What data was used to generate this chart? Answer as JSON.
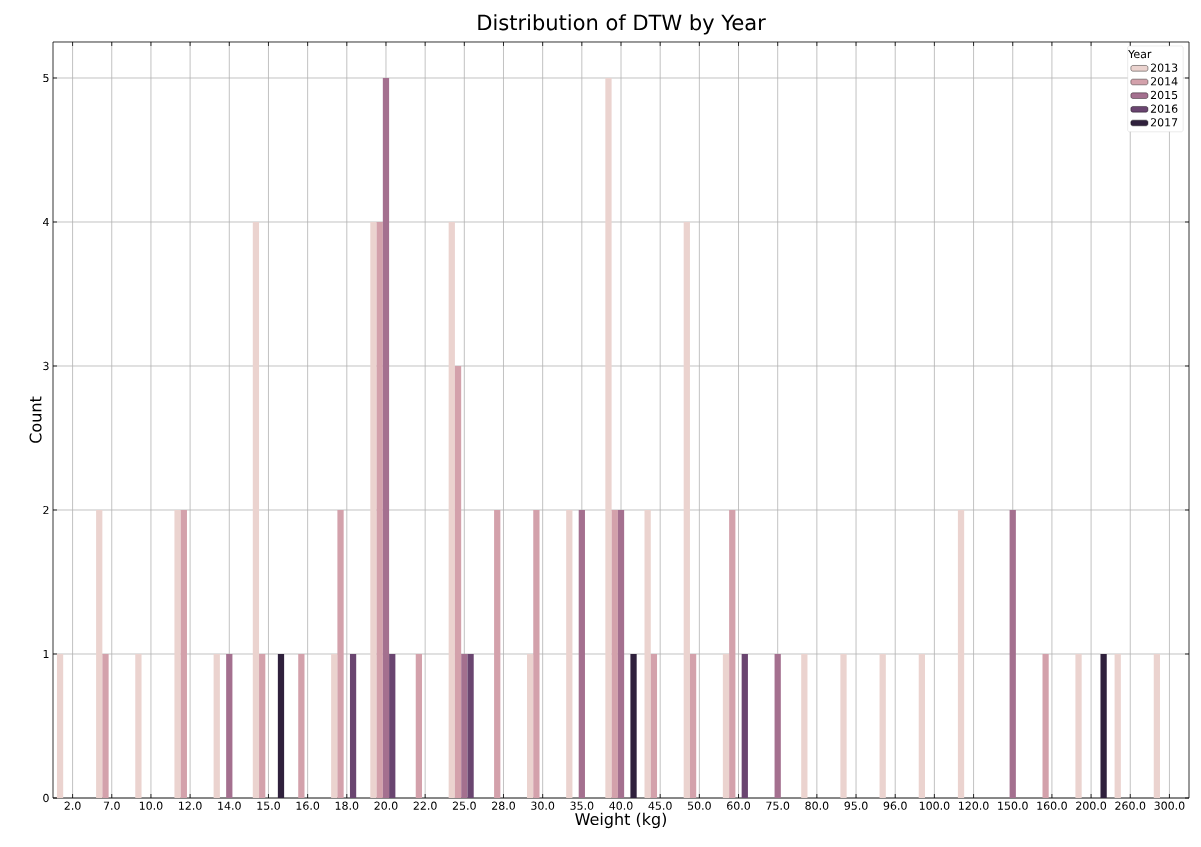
{
  "chart_data": {
    "type": "bar",
    "title": "Distribution of DTW by Year",
    "xlabel": "Weight (kg)",
    "ylabel": "Count",
    "legend_title": "Year",
    "categories": [
      "2.0",
      "7.0",
      "10.0",
      "12.0",
      "14.0",
      "15.0",
      "16.0",
      "18.0",
      "20.0",
      "22.0",
      "25.0",
      "28.0",
      "30.0",
      "35.0",
      "40.0",
      "45.0",
      "50.0",
      "60.0",
      "75.0",
      "80.0",
      "95.0",
      "96.0",
      "100.0",
      "120.0",
      "150.0",
      "160.0",
      "200.0",
      "260.0",
      "300.0"
    ],
    "series": [
      {
        "name": "2013",
        "color": "#ebd3cf",
        "values": [
          1,
          2,
          1,
          2,
          1,
          4,
          null,
          1,
          4,
          null,
          4,
          null,
          1,
          2,
          5,
          2,
          4,
          1,
          null,
          1,
          1,
          1,
          1,
          2,
          null,
          null,
          1,
          1,
          1
        ]
      },
      {
        "name": "2014",
        "color": "#d3a1ab",
        "values": [
          null,
          1,
          null,
          2,
          null,
          1,
          1,
          2,
          4,
          1,
          3,
          2,
          2,
          null,
          2,
          1,
          1,
          2,
          null,
          null,
          null,
          null,
          null,
          null,
          null,
          1,
          null,
          null,
          null
        ]
      },
      {
        "name": "2015",
        "color": "#a4708f",
        "values": [
          null,
          null,
          null,
          null,
          1,
          null,
          null,
          null,
          5,
          null,
          1,
          null,
          null,
          2,
          2,
          null,
          null,
          null,
          1,
          null,
          null,
          null,
          null,
          null,
          2,
          null,
          null,
          null,
          null
        ]
      },
      {
        "name": "2016",
        "color": "#6a4570",
        "values": [
          null,
          null,
          null,
          null,
          null,
          null,
          null,
          1,
          1,
          null,
          1,
          null,
          null,
          null,
          null,
          null,
          null,
          1,
          null,
          null,
          null,
          null,
          null,
          null,
          null,
          null,
          null,
          null,
          null
        ]
      },
      {
        "name": "2017",
        "color": "#2f203c",
        "values": [
          null,
          null,
          null,
          null,
          null,
          1,
          null,
          null,
          null,
          null,
          null,
          null,
          null,
          null,
          1,
          null,
          null,
          null,
          null,
          null,
          null,
          null,
          null,
          null,
          null,
          null,
          1,
          null,
          null
        ]
      }
    ],
    "ylim": [
      0,
      5.25
    ],
    "yticks": [
      0,
      1,
      2,
      3,
      4,
      5
    ],
    "grid": true,
    "legend": "top right"
  }
}
